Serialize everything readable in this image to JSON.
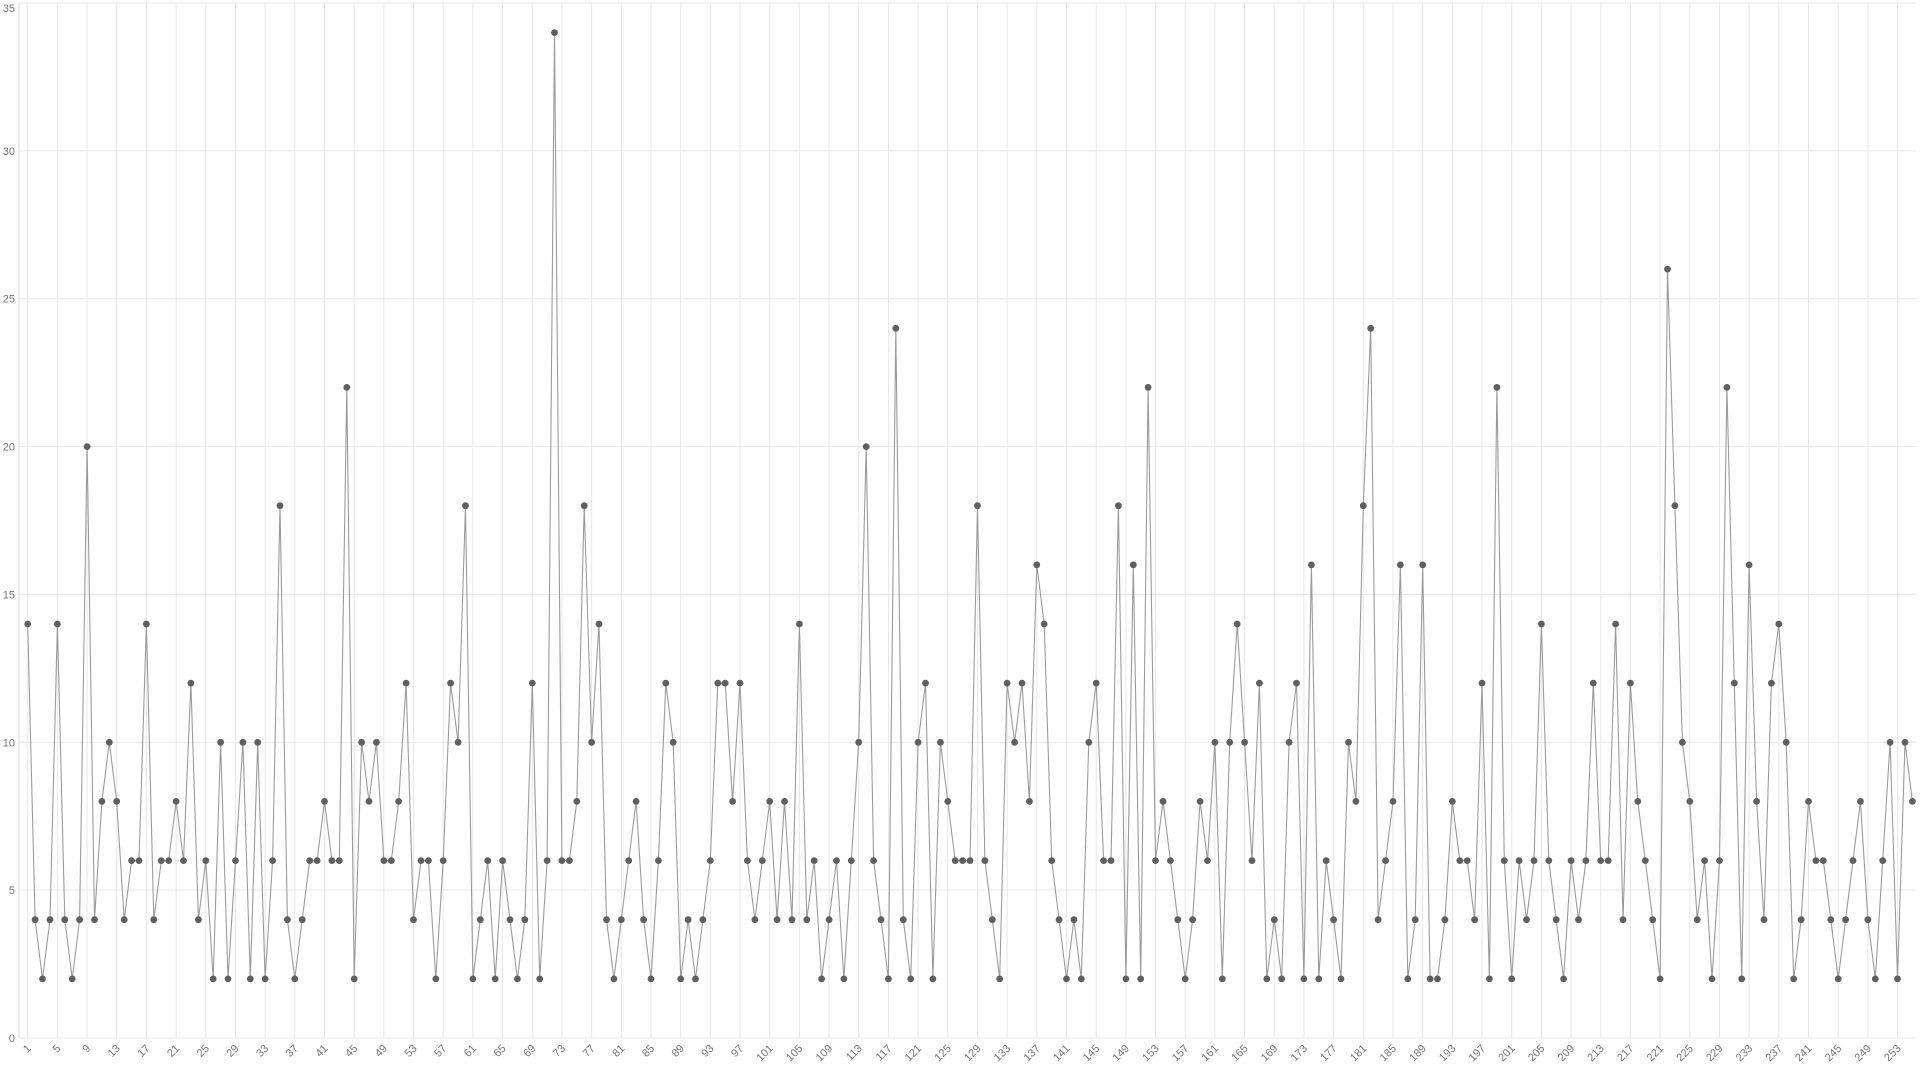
{
  "page": {
    "background": "#ffffff"
  },
  "chart_data": {
    "type": "line",
    "title": "",
    "xlabel": "",
    "ylabel": "",
    "x_start": 1,
    "x_end": 255,
    "ylim": [
      0,
      35
    ],
    "grid": true,
    "legend": "none",
    "marker": "circle",
    "y_ticks": [
      0,
      5,
      10,
      15,
      20,
      25,
      30,
      35
    ],
    "x_tick_labels": [
      1,
      5,
      9,
      13,
      17,
      21,
      25,
      29,
      33,
      37,
      41,
      45,
      49,
      53,
      57,
      61,
      65,
      69,
      73,
      77,
      81,
      85,
      89,
      93,
      97,
      101,
      105,
      109,
      113,
      117,
      121,
      125,
      129,
      133,
      137,
      141,
      145,
      149,
      153,
      157,
      161,
      165,
      169,
      173,
      177,
      181,
      185,
      189,
      193,
      197,
      201,
      205,
      209,
      213,
      217,
      221,
      225,
      229,
      233,
      237,
      241,
      245,
      249,
      253
    ],
    "values": [
      14,
      4,
      2,
      4,
      14,
      4,
      2,
      4,
      20,
      4,
      8,
      10,
      8,
      4,
      6,
      6,
      14,
      4,
      6,
      6,
      8,
      6,
      12,
      4,
      6,
      2,
      10,
      2,
      6,
      10,
      2,
      10,
      2,
      6,
      18,
      4,
      2,
      4,
      6,
      6,
      8,
      6,
      6,
      22,
      2,
      10,
      8,
      10,
      6,
      6,
      8,
      12,
      4,
      6,
      6,
      2,
      6,
      12,
      10,
      18,
      2,
      4,
      6,
      2,
      6,
      4,
      2,
      4,
      12,
      2,
      6,
      34,
      6,
      6,
      8,
      18,
      10,
      14,
      4,
      2,
      4,
      6,
      8,
      4,
      2,
      6,
      12,
      10,
      2,
      4,
      2,
      4,
      6,
      12,
      12,
      8,
      12,
      6,
      4,
      6,
      8,
      4,
      8,
      4,
      14,
      4,
      6,
      2,
      4,
      6,
      2,
      6,
      10,
      20,
      6,
      4,
      2,
      24,
      4,
      2,
      10,
      12,
      2,
      10,
      8,
      6,
      6,
      6,
      18,
      6,
      4,
      2,
      12,
      10,
      12,
      8,
      16,
      14,
      6,
      4,
      2,
      4,
      2,
      10,
      12,
      6,
      6,
      18,
      2,
      16,
      2,
      22,
      6,
      8,
      6,
      4,
      2,
      4,
      8,
      6,
      10,
      2,
      10,
      14,
      10,
      6,
      12,
      2,
      4,
      2,
      10,
      12,
      2,
      16,
      2,
      6,
      4,
      2,
      10,
      8,
      18,
      24,
      4,
      6,
      8,
      16,
      2,
      4,
      16,
      2,
      2,
      4,
      8,
      6,
      6,
      4,
      12,
      2,
      22,
      6,
      2,
      6,
      4,
      6,
      14,
      6,
      4,
      2,
      6,
      4,
      6,
      12,
      6,
      6,
      14,
      4,
      12,
      8,
      6,
      4,
      2,
      26,
      18,
      10,
      8,
      4,
      6,
      2,
      6,
      22,
      12,
      2,
      16,
      8,
      4,
      12,
      14,
      10,
      2,
      4,
      8,
      6,
      6,
      4,
      2,
      4,
      6,
      8,
      4,
      2,
      6,
      10,
      2,
      10,
      8
    ],
    "colors": {
      "line": "#9b9b9b",
      "point": "#5f5f5f",
      "grid": "#e7e7e7",
      "axis_line": "#dadada",
      "tick_text": "#757575",
      "background": "#ffffff"
    }
  }
}
